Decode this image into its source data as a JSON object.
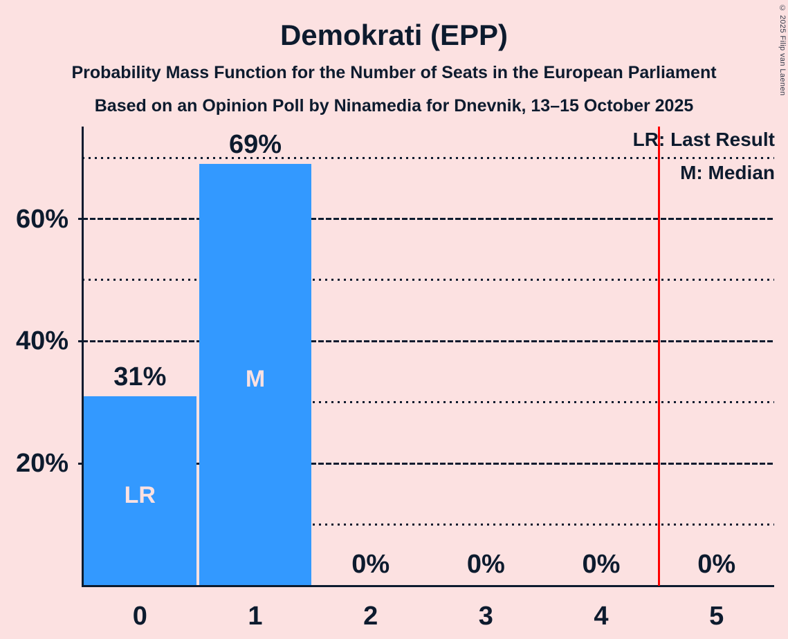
{
  "title": "Demokrati (EPP)",
  "subtitle1": "Probability Mass Function for the Number of Seats in the European Parliament",
  "subtitle2": "Based on an Opinion Poll by Ninamedia for Dnevnik, 13–15 October 2025",
  "copyright": "© 2025 Filip van Laenen",
  "legend": {
    "lr": "LR: Last Result",
    "m": "M: Median"
  },
  "colors": {
    "background": "#FCE1E1",
    "bar": "#3399FF",
    "text": "#0D1B2E",
    "bar_label": "#FCE1E1",
    "red_line": "#FF0000"
  },
  "chart_data": {
    "type": "bar",
    "title": "Demokrati (EPP)",
    "categories": [
      "0",
      "1",
      "2",
      "3",
      "4",
      "5"
    ],
    "values": [
      31,
      69,
      0,
      0,
      0,
      0
    ],
    "value_labels": [
      "31%",
      "69%",
      "0%",
      "0%",
      "0%",
      "0%"
    ],
    "bar_annotations": [
      {
        "category": "0",
        "label": "LR"
      },
      {
        "category": "1",
        "label": "M"
      }
    ],
    "annotation_meanings": {
      "LR": "Last Result",
      "M": "Median"
    },
    "xlabel": "",
    "ylabel": "",
    "ylim": [
      0,
      75
    ],
    "y_major_ticks": [
      20,
      40,
      60
    ],
    "y_major_tick_labels": [
      "20%",
      "40%",
      "60%"
    ],
    "y_minor_ticks": [
      10,
      30,
      50,
      70
    ],
    "reference_line_x": 4.5,
    "grid": true,
    "legend_position": "top-right"
  }
}
